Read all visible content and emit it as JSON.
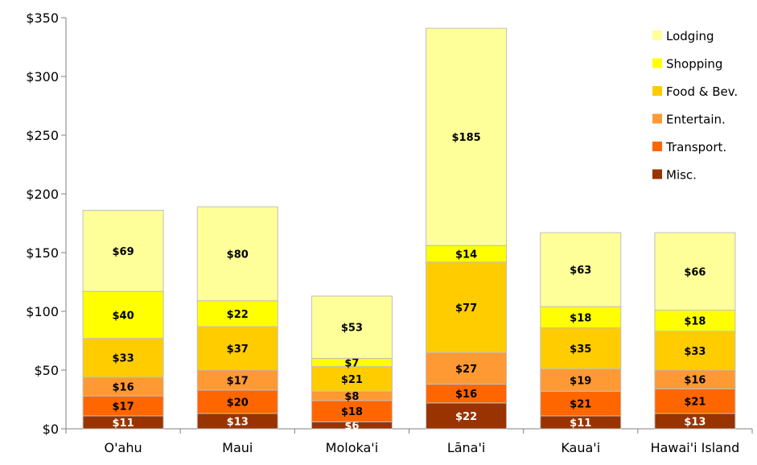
{
  "chart_data": {
    "type": "bar",
    "stacked": true,
    "categories": [
      "O'ahu",
      "Maui",
      "Moloka'i",
      "Lāna'i",
      "Kaua'i",
      "Hawai'i Island"
    ],
    "series": [
      {
        "name": "Misc.",
        "color": "#993300",
        "label_color": "#ffffff",
        "values": [
          11,
          13,
          6,
          22,
          11,
          13
        ]
      },
      {
        "name": "Transport.",
        "color": "#ff6600",
        "label_color": "#000000",
        "values": [
          17,
          20,
          18,
          16,
          21,
          21
        ]
      },
      {
        "name": "Entertain.",
        "color": "#ff9933",
        "label_color": "#000000",
        "values": [
          16,
          17,
          8,
          27,
          19,
          16
        ]
      },
      {
        "name": "Food & Bev.",
        "color": "#ffcc00",
        "label_color": "#000000",
        "values": [
          33,
          37,
          21,
          77,
          35,
          33
        ]
      },
      {
        "name": "Shopping",
        "color": "#ffff00",
        "label_color": "#000000",
        "values": [
          40,
          22,
          7,
          14,
          18,
          18
        ]
      },
      {
        "name": "Lodging",
        "color": "#ffff99",
        "label_color": "#000000",
        "values": [
          69,
          80,
          53,
          185,
          63,
          66
        ]
      }
    ],
    "yticks": [
      "$0",
      "$50",
      "$100",
      "$150",
      "$200",
      "$250",
      "$300",
      "$350"
    ],
    "ytick_values": [
      0,
      50,
      100,
      150,
      200,
      250,
      300,
      350
    ],
    "ylim": [
      0,
      350
    ],
    "value_prefix": "$",
    "title": "",
    "xlabel": "",
    "ylabel": "",
    "grid": false,
    "legend": {
      "position": "top-right",
      "order": [
        "Lodging",
        "Shopping",
        "Food & Bev.",
        "Entertain.",
        "Transport.",
        "Misc."
      ]
    },
    "bar_border_color": "#bfbfbf"
  }
}
